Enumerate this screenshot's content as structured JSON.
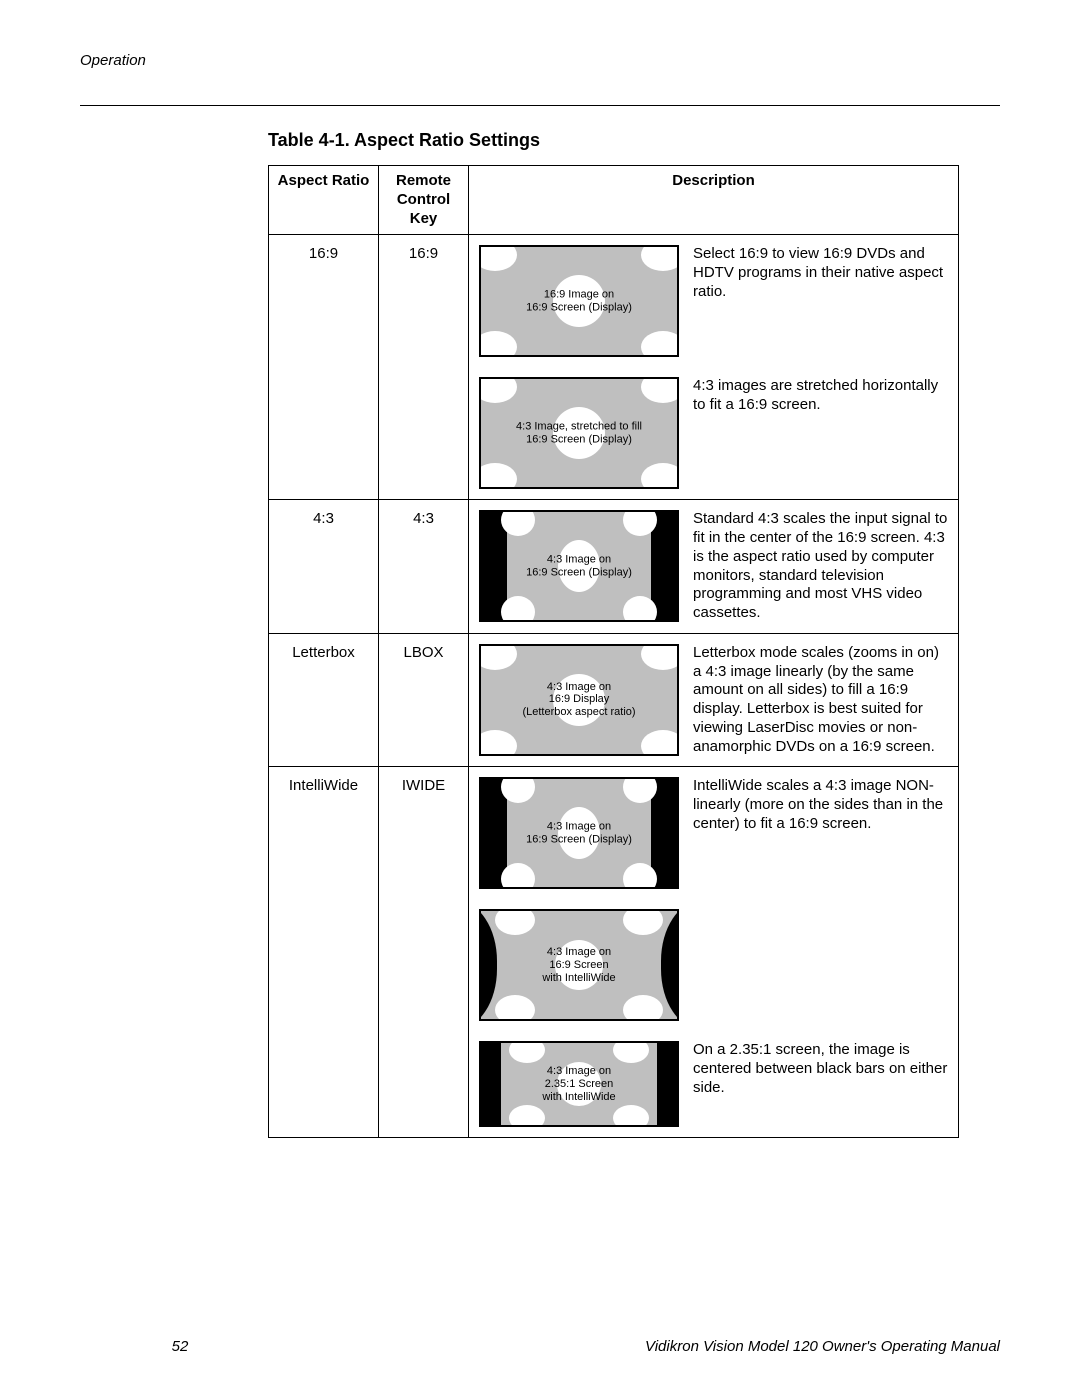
{
  "meta": {
    "section_label": "Operation",
    "page_number": "52",
    "manual_title": "Vidikron Vision Model 120 Owner's Operating Manual",
    "table_title": "Table 4-1. Aspect Ratio Settings"
  },
  "style": {
    "page_bg": "#ffffff",
    "text_color": "#000000",
    "table_border": "#000000",
    "diagram_frame": "#000000",
    "diagram_active": "#bfbfbf",
    "ellipse_fill": "#ffffff",
    "body_font": "Myriad Pro / Helvetica / Arial",
    "title_fontsize_pt": 13,
    "body_fontsize_pt": 11,
    "caption_fontsize_pt": 8
  },
  "columns": {
    "aspect_ratio": "Aspect Ratio",
    "remote_key": "Remote Control Key",
    "description": "Description"
  },
  "rows": [
    {
      "id": "16_9",
      "aspect_ratio": "16:9",
      "remote_key": "16:9",
      "blocks": [
        {
          "diagram_type": "full169",
          "caption_line1": "16:9 Image on",
          "caption_line2": "16:9 Screen (Display)",
          "text": "Select 16:9 to view 16:9 DVDs and HDTV programs in their native aspect ratio."
        },
        {
          "diagram_type": "full169",
          "caption_line1": "4:3 Image, stretched to fill",
          "caption_line2": "16:9 Screen (Display)",
          "text": "4:3 images are stretched horizontally to fit a 16:9 screen."
        }
      ]
    },
    {
      "id": "4_3",
      "aspect_ratio": "4:3",
      "remote_key": "4:3",
      "blocks": [
        {
          "diagram_type": "pillar43",
          "caption_line1": "4:3 Image on",
          "caption_line2": "16:9 Screen (Display)",
          "text": "Standard 4:3 scales the input signal to fit in the center of the 16:9 screen. 4:3 is the aspect ratio used by computer monitors, standard television programming and most VHS video cassettes."
        }
      ]
    },
    {
      "id": "letterbox",
      "aspect_ratio": "Letterbox",
      "remote_key": "LBOX",
      "blocks": [
        {
          "diagram_type": "full169",
          "caption_line1": "4:3 Image on",
          "caption_line2": "16:9 Display",
          "caption_line3": "(Letterbox aspect ratio)",
          "text": "Letterbox mode scales (zooms in on) a 4:3 image linearly (by the same amount on all sides) to fill a 16:9 display.\nLetterbox is best suited for viewing LaserDisc movies or non-anamorphic DVDs on a 16:9 screen."
        }
      ]
    },
    {
      "id": "intelliwide",
      "aspect_ratio": "IntelliWide",
      "remote_key": "IWIDE",
      "blocks": [
        {
          "diagram_type": "pillar43",
          "caption_line1": "4:3 Image on",
          "caption_line2": "16:9 Screen (Display)",
          "text": "IntelliWide scales a 4:3 image NON-linearly (more on the sides than in the center) to fit a 16:9 screen."
        },
        {
          "diagram_type": "iwide",
          "caption_line1": "4:3 Image on",
          "caption_line2": "16:9 Screen",
          "caption_line3": "with IntelliWide",
          "text": ""
        },
        {
          "diagram_type": "cine235",
          "caption_line1": "4:3 Image on",
          "caption_line2": "2.35:1 Screen",
          "caption_line3": "with IntelliWide",
          "text": "On a 2.35:1 screen, the image is centered between black bars on either side."
        }
      ]
    }
  ]
}
